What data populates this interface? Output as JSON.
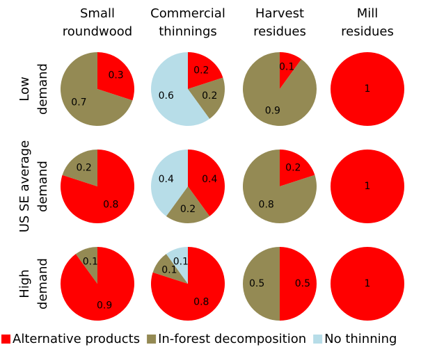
{
  "chart_data": {
    "type": "pie",
    "columns": [
      [
        "Small",
        "roundwood"
      ],
      [
        "Commercial",
        "thinnings"
      ],
      [
        "Harvest",
        "residues"
      ],
      [
        "Mill",
        "residues"
      ]
    ],
    "rows": [
      [
        "Low",
        "demand"
      ],
      [
        "US SE average",
        "demand"
      ],
      [
        "High",
        "demand"
      ]
    ],
    "series": [
      {
        "name": "Alternative products",
        "color": "#ff0000",
        "values": [
          [
            0.3,
            0.2,
            0.1,
            1
          ],
          [
            0.8,
            0.4,
            0.2,
            1
          ],
          [
            0.9,
            0.8,
            0.5,
            1
          ]
        ]
      },
      {
        "name": "In-forest decomposition",
        "color": "#948a54",
        "values": [
          [
            0.7,
            0.2,
            0.9,
            null
          ],
          [
            0.2,
            0.2,
            0.8,
            null
          ],
          [
            0.1,
            0.1,
            0.5,
            null
          ]
        ]
      },
      {
        "name": "No thinning",
        "color": "#b7dde8",
        "values": [
          [
            null,
            0.6,
            null,
            null
          ],
          [
            null,
            0.4,
            null,
            null
          ],
          [
            null,
            0.1,
            null,
            null
          ]
        ]
      }
    ]
  }
}
